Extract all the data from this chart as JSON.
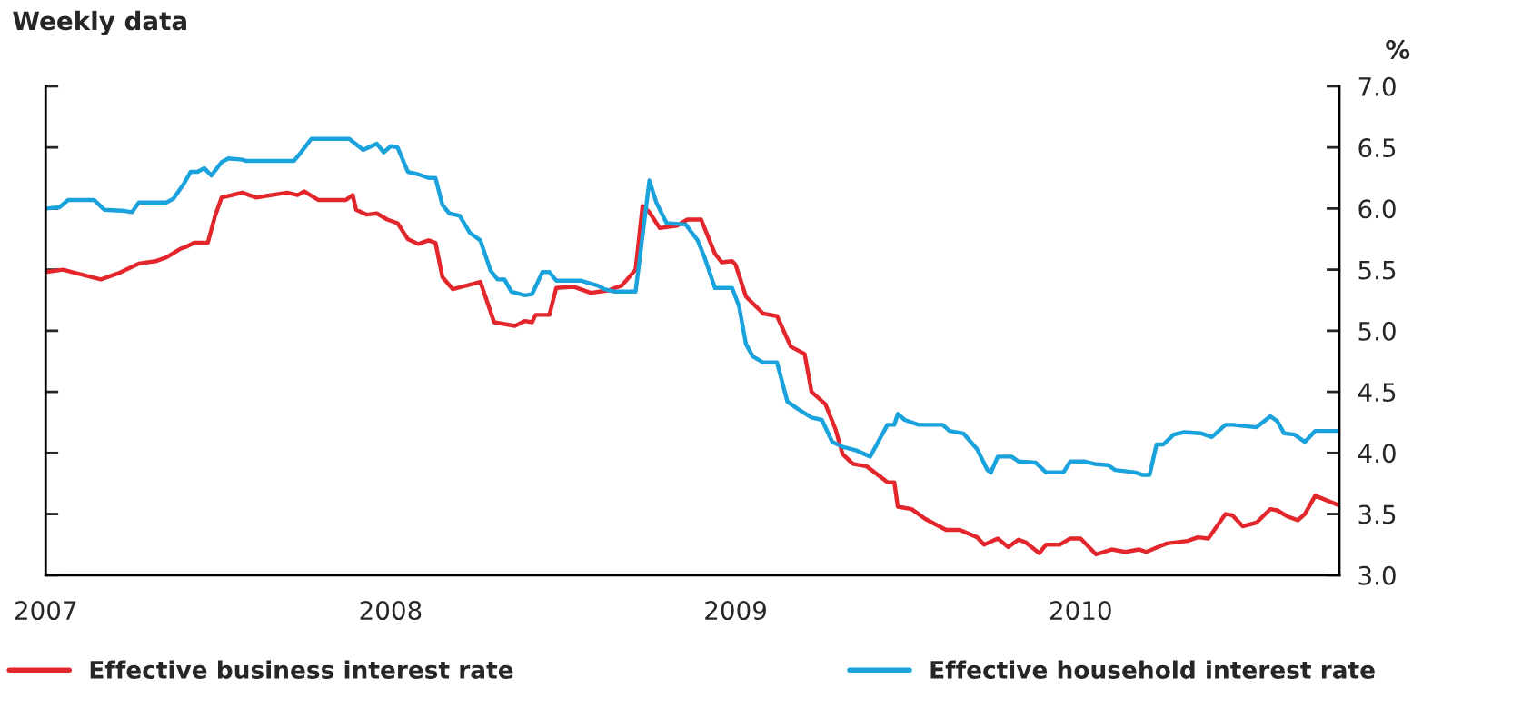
{
  "chart_data": {
    "type": "line",
    "title": "Weekly data",
    "ylabel": "%",
    "xlim": [
      2007,
      2010.75
    ],
    "xticks": [
      2007,
      2008,
      2009,
      2010
    ],
    "ylim": [
      3.0,
      7.0
    ],
    "yticks": [
      {
        "value": 3.0,
        "label": "3.0"
      },
      {
        "value": 3.5,
        "label": "3.5"
      },
      {
        "value": 4.0,
        "label": "4.0"
      },
      {
        "value": 4.5,
        "label": "4.5"
      },
      {
        "value": 5.0,
        "label": "5.0"
      },
      {
        "value": 5.5,
        "label": "5.5"
      },
      {
        "value": 6.0,
        "label": "6.0"
      },
      {
        "value": 6.5,
        "label": "6.5"
      },
      {
        "value": 7.0,
        "label": "7.0"
      }
    ],
    "grid": false,
    "legend": "bottom",
    "line_style": "solid",
    "marker": "none",
    "series": [
      {
        "name": "Effective business interest rate",
        "color": "#e3262b",
        "x": [
          2007.0,
          2007.05,
          2007.09,
          2007.16,
          2007.21,
          2007.27,
          2007.32,
          2007.35,
          2007.39,
          2007.41,
          2007.43,
          2007.47,
          2007.49,
          2007.51,
          2007.57,
          2007.61,
          2007.7,
          2007.73,
          2007.75,
          2007.79,
          2007.87,
          2007.89,
          2007.9,
          2007.93,
          2007.96,
          2007.99,
          2008.02,
          2008.05,
          2008.08,
          2008.11,
          2008.13,
          2008.15,
          2008.18,
          2008.22,
          2008.26,
          2008.3,
          2008.36,
          2008.39,
          2008.41,
          2008.42,
          2008.46,
          2008.48,
          2008.53,
          2008.58,
          2008.63,
          2008.67,
          2008.71,
          2008.73,
          2008.75,
          2008.78,
          2008.83,
          2008.86,
          2008.9,
          2008.92,
          2008.94,
          2008.96,
          2008.99,
          2009.0,
          2009.03,
          2009.08,
          2009.12,
          2009.16,
          2009.2,
          2009.22,
          2009.26,
          2009.29,
          2009.31,
          2009.34,
          2009.38,
          2009.44,
          2009.46,
          2009.47,
          2009.51,
          2009.55,
          2009.61,
          2009.65,
          2009.7,
          2009.72,
          2009.76,
          2009.79,
          2009.82,
          2009.84,
          2009.88,
          2009.9,
          2009.94,
          2009.97,
          2010.0,
          2010.045,
          2010.09,
          2010.13,
          2010.17,
          2010.19,
          2010.25,
          2010.31,
          2010.34,
          2010.37,
          2010.42,
          2010.44,
          2010.47,
          2010.51,
          2010.55,
          2010.57,
          2010.6,
          2010.63,
          2010.65,
          2010.68,
          2010.75
        ],
        "values": [
          5.48,
          5.5,
          5.47,
          5.42,
          5.47,
          5.55,
          5.57,
          5.6,
          5.67,
          5.69,
          5.72,
          5.72,
          5.93,
          6.09,
          6.13,
          6.09,
          6.13,
          6.11,
          6.14,
          6.07,
          6.07,
          6.11,
          5.99,
          5.95,
          5.96,
          5.91,
          5.88,
          5.75,
          5.71,
          5.74,
          5.72,
          5.44,
          5.34,
          5.37,
          5.4,
          5.07,
          5.04,
          5.08,
          5.07,
          5.13,
          5.13,
          5.35,
          5.36,
          5.31,
          5.33,
          5.37,
          5.5,
          6.02,
          5.97,
          5.84,
          5.86,
          5.91,
          5.91,
          5.77,
          5.63,
          5.56,
          5.57,
          5.54,
          5.28,
          5.14,
          5.12,
          4.87,
          4.81,
          4.5,
          4.4,
          4.19,
          3.99,
          3.91,
          3.89,
          3.76,
          3.76,
          3.56,
          3.54,
          3.46,
          3.37,
          3.37,
          3.31,
          3.25,
          3.3,
          3.23,
          3.29,
          3.27,
          3.18,
          3.25,
          3.25,
          3.3,
          3.3,
          3.17,
          3.21,
          3.19,
          3.21,
          3.19,
          3.26,
          3.28,
          3.31,
          3.3,
          3.5,
          3.49,
          3.4,
          3.43,
          3.54,
          3.53,
          3.48,
          3.45,
          3.5,
          3.65,
          3.57
        ]
      },
      {
        "name": "Effective household interest rate",
        "color": "#1aa2dc",
        "x": [
          2007.0,
          2007.04,
          2007.065,
          2007.14,
          2007.17,
          2007.23,
          2007.25,
          2007.27,
          2007.35,
          2007.37,
          2007.4,
          2007.42,
          2007.44,
          2007.46,
          2007.48,
          2007.51,
          2007.53,
          2007.57,
          2007.58,
          2007.72,
          2007.74,
          2007.77,
          2007.88,
          2007.92,
          2007.96,
          2007.98,
          2008.0,
          2008.02,
          2008.05,
          2008.08,
          2008.11,
          2008.13,
          2008.15,
          2008.17,
          2008.2,
          2008.23,
          2008.26,
          2008.29,
          2008.31,
          2008.33,
          2008.35,
          2008.39,
          2008.41,
          2008.44,
          2008.46,
          2008.48,
          2008.55,
          2008.6,
          2008.62,
          2008.65,
          2008.71,
          2008.75,
          2008.77,
          2008.8,
          2008.855,
          2008.89,
          2008.91,
          2008.94,
          2008.99,
          2009.01,
          2009.03,
          2009.05,
          2009.08,
          2009.12,
          2009.15,
          2009.18,
          2009.22,
          2009.25,
          2009.28,
          2009.31,
          2009.35,
          2009.39,
          2009.44,
          2009.46,
          2009.47,
          2009.49,
          2009.53,
          2009.6,
          2009.62,
          2009.66,
          2009.7,
          2009.73,
          2009.74,
          2009.76,
          2009.8,
          2009.82,
          2009.87,
          2009.9,
          2009.95,
          2009.97,
          2010.01,
          2010.04,
          2010.08,
          2010.1,
          2010.16,
          2010.18,
          2010.2,
          2010.22,
          2010.24,
          2010.27,
          2010.3,
          2010.35,
          2010.38,
          2010.42,
          2010.44,
          2010.51,
          2010.55,
          2010.57,
          2010.59,
          2010.62,
          2010.65,
          2010.68,
          2010.75
        ],
        "values": [
          6.0,
          6.01,
          6.07,
          6.07,
          5.99,
          5.98,
          5.97,
          6.05,
          6.05,
          6.08,
          6.2,
          6.3,
          6.3,
          6.33,
          6.27,
          6.38,
          6.41,
          6.4,
          6.39,
          6.39,
          6.46,
          6.57,
          6.57,
          6.48,
          6.53,
          6.46,
          6.51,
          6.5,
          6.3,
          6.28,
          6.25,
          6.25,
          6.03,
          5.96,
          5.94,
          5.8,
          5.74,
          5.49,
          5.42,
          5.42,
          5.32,
          5.29,
          5.3,
          5.48,
          5.48,
          5.41,
          5.41,
          5.37,
          5.34,
          5.32,
          5.32,
          6.23,
          6.05,
          5.88,
          5.87,
          5.74,
          5.6,
          5.35,
          5.35,
          5.2,
          4.89,
          4.79,
          4.74,
          4.74,
          4.42,
          4.36,
          4.29,
          4.27,
          4.09,
          4.05,
          4.02,
          3.97,
          4.23,
          4.23,
          4.32,
          4.27,
          4.23,
          4.23,
          4.18,
          4.16,
          4.03,
          3.86,
          3.84,
          3.97,
          3.97,
          3.93,
          3.92,
          3.84,
          3.84,
          3.93,
          3.93,
          3.91,
          3.9,
          3.86,
          3.84,
          3.82,
          3.82,
          4.07,
          4.07,
          4.15,
          4.17,
          4.16,
          4.13,
          4.23,
          4.23,
          4.21,
          4.3,
          4.26,
          4.16,
          4.15,
          4.09,
          4.18,
          4.18
        ]
      }
    ]
  }
}
